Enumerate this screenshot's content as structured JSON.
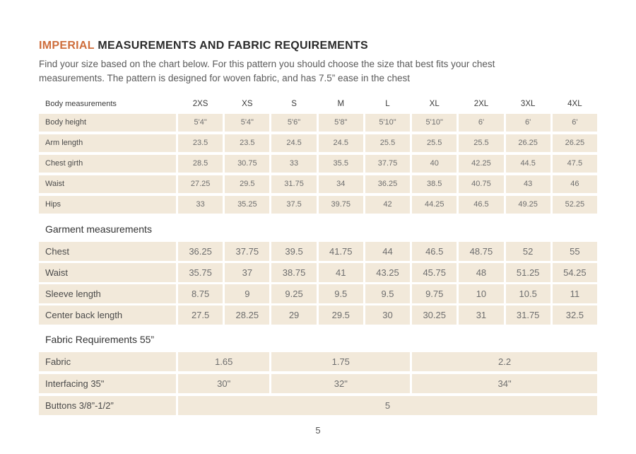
{
  "page": {
    "title_highlight": "IMPERIAL",
    "title_rest": "MEASUREMENTS AND FABRIC REQUIREMENTS",
    "subtitle_line1": "Find your size based on the chart below. For this pattern you should choose the size that best fits your chest",
    "subtitle_line2": "measurements. The pattern is designed for woven fabric, and has 7.5” ease in the chest",
    "page_number": "5"
  },
  "colors": {
    "accent": "#ce6d3b",
    "cell_bg": "#f2e9da",
    "label_text": "#4a4a4a",
    "value_text": "#6e6e6e",
    "heading_text": "#2b2b2b",
    "subtitle_text": "#5a5a5a"
  },
  "size_table": {
    "header_label": "Body measurements",
    "sizes": [
      "2XS",
      "XS",
      "S",
      "M",
      "L",
      "XL",
      "2XL",
      "3XL",
      "4XL"
    ],
    "rows": [
      {
        "label": "Body height",
        "values": [
          "5'4\"",
          "5'4\"",
          "5'6\"",
          "5'8\"",
          "5'10\"",
          "5'10\"",
          "6'",
          "6'",
          "6'"
        ]
      },
      {
        "label": "Arm length",
        "values": [
          "23.5",
          "23.5",
          "24.5",
          "24.5",
          "25.5",
          "25.5",
          "25.5",
          "26.25",
          "26.25"
        ]
      },
      {
        "label": "Chest girth",
        "values": [
          "28.5",
          "30.75",
          "33",
          "35.5",
          "37.75",
          "40",
          "42.25",
          "44.5",
          "47.5"
        ]
      },
      {
        "label": "Waist",
        "values": [
          "27.25",
          "29.5",
          "31.75",
          "34",
          "36.25",
          "38.5",
          "40.75",
          "43",
          "46"
        ]
      },
      {
        "label": "Hips",
        "values": [
          "33",
          "35.25",
          "37.5",
          "39.75",
          "42",
          "44.25",
          "46.5",
          "49.25",
          "52.25"
        ]
      }
    ]
  },
  "garment_table": {
    "heading": "Garment measurements",
    "rows": [
      {
        "label": "Chest",
        "values": [
          "36.25",
          "37.75",
          "39.5",
          "41.75",
          "44",
          "46.5",
          "48.75",
          "52",
          "55"
        ]
      },
      {
        "label": "Waist",
        "values": [
          "35.75",
          "37",
          "38.75",
          "41",
          "43.25",
          "45.75",
          "48",
          "51.25",
          "54.25"
        ]
      },
      {
        "label": "Sleeve length",
        "values": [
          "8.75",
          "9",
          "9.25",
          "9.5",
          "9.5",
          "9.75",
          "10",
          "10.5",
          "11"
        ]
      },
      {
        "label": "Center back length",
        "values": [
          "27.5",
          "28.25",
          "29",
          "29.5",
          "30",
          "30.25",
          "31",
          "31.75",
          "32.5"
        ]
      }
    ]
  },
  "fabric_table": {
    "heading": "Fabric Requirements 55”",
    "rows": [
      {
        "label": "Fabric",
        "cells": [
          {
            "span": 2,
            "value": "1.65"
          },
          {
            "span": 3,
            "value": "1.75"
          },
          {
            "span": 4,
            "value": "2.2"
          }
        ]
      },
      {
        "label": "Interfacing 35\"",
        "cells": [
          {
            "span": 2,
            "value": "30\""
          },
          {
            "span": 3,
            "value": "32\""
          },
          {
            "span": 4,
            "value": "34\""
          }
        ]
      },
      {
        "label": "Buttons 3/8”-1/2”",
        "cells": [
          {
            "span": 9,
            "value": "5"
          }
        ]
      }
    ]
  }
}
